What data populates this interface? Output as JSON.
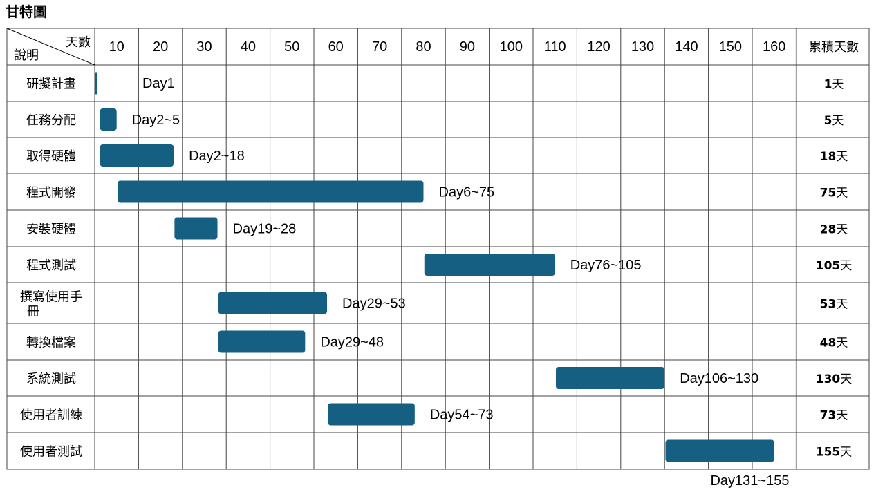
{
  "chart_data": {
    "type": "gantt",
    "title": "甘特圖",
    "corner_top_label": "天數",
    "corner_bottom_label": "說明",
    "ticks": [
      10,
      20,
      30,
      40,
      50,
      60,
      70,
      80,
      90,
      100,
      110,
      120,
      130,
      140,
      150,
      160
    ],
    "cumulative_header": "累積天數",
    "xlim": [
      0,
      170
    ],
    "tasks": [
      {
        "name": "研擬計畫",
        "start": 1,
        "end": 1,
        "label": "Day1",
        "cumulative": "1",
        "unit": "天"
      },
      {
        "name": "任務分配",
        "start": 2,
        "end": 5,
        "label": "Day2~5",
        "cumulative": "5",
        "unit": "天"
      },
      {
        "name": "取得硬體",
        "start": 2,
        "end": 18,
        "label": "Day2~18",
        "cumulative": "18",
        "unit": "天"
      },
      {
        "name": "程式開發",
        "start": 6,
        "end": 75,
        "label": "Day6~75",
        "cumulative": "75",
        "unit": "天"
      },
      {
        "name": "安裝硬體",
        "start": 19,
        "end": 28,
        "label": "Day19~28",
        "cumulative": "28",
        "unit": "天"
      },
      {
        "name": "程式測試",
        "start": 76,
        "end": 105,
        "label": "Day76~105",
        "cumulative": "105",
        "unit": "天"
      },
      {
        "name": "撰寫使用手冊",
        "start": 29,
        "end": 53,
        "label": "Day29~53",
        "cumulative": "53",
        "unit": "天"
      },
      {
        "name": "轉換檔案",
        "start": 29,
        "end": 48,
        "label": "Day29~48",
        "cumulative": "48",
        "unit": "天"
      },
      {
        "name": "系統測試",
        "start": 106,
        "end": 130,
        "label": "Day106~130",
        "cumulative": "130",
        "unit": "天"
      },
      {
        "name": "使用者訓練",
        "start": 54,
        "end": 73,
        "label": "Day54~73",
        "cumulative": "73",
        "unit": "天"
      },
      {
        "name": "使用者測試",
        "start": 131,
        "end": 155,
        "label": "Day131~155",
        "cumulative": "155",
        "unit": "天"
      }
    ],
    "bar_color": "#155f82",
    "grid": true
  }
}
